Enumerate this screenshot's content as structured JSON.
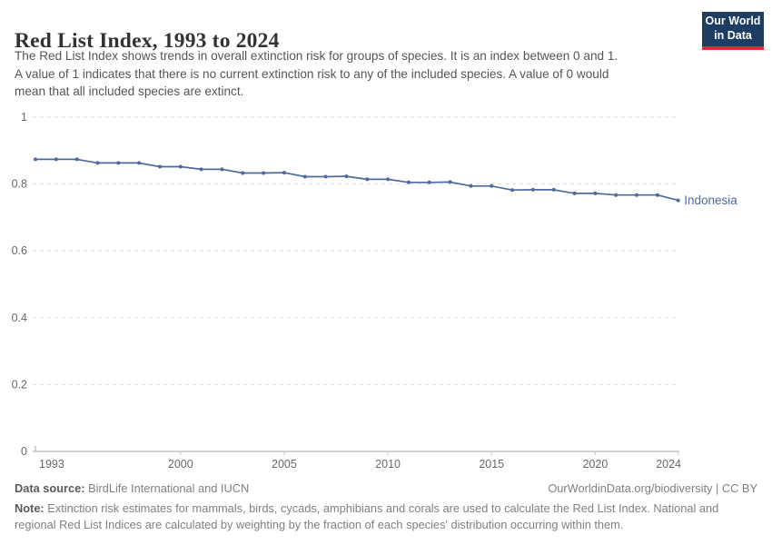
{
  "header": {
    "title": "Red List Index, 1993 to 2024",
    "subtitle_lines": [
      "The Red List Index shows trends in overall extinction risk for groups of species. It is an index between 0 and 1.",
      "A value of 1 indicates that there is no current extinction risk to any of the included species. A value of 0 would",
      "mean that all included species are extinct."
    ],
    "logo": {
      "line1": "Our World",
      "line2": "in Data",
      "bg_color": "#1d3d63",
      "bar_color": "#d13239"
    }
  },
  "chart_data": {
    "type": "line",
    "title": "Red List Index, 1993 to 2024",
    "xlabel": "",
    "ylabel": "",
    "grid": "horizontal-dashed",
    "legend": "inline-end-label",
    "ylim": [
      0,
      1
    ],
    "yticks": [
      0,
      0.2,
      0.4,
      0.6,
      0.8,
      1
    ],
    "ytick_labels": [
      "0",
      "0.2",
      "0.4",
      "0.6",
      "0.8",
      "1"
    ],
    "xticks": [
      1993,
      2000,
      2005,
      2010,
      2015,
      2020,
      2024
    ],
    "x": [
      1993,
      1994,
      1995,
      1996,
      1997,
      1998,
      1999,
      2000,
      2001,
      2002,
      2003,
      2004,
      2005,
      2006,
      2007,
      2008,
      2009,
      2010,
      2011,
      2012,
      2013,
      2014,
      2015,
      2016,
      2017,
      2018,
      2019,
      2020,
      2021,
      2022,
      2023,
      2024
    ],
    "series": [
      {
        "name": "Indonesia",
        "color": "#4C6A9C",
        "values": [
          0.874,
          0.874,
          0.874,
          0.863,
          0.863,
          0.863,
          0.852,
          0.852,
          0.844,
          0.844,
          0.833,
          0.833,
          0.834,
          0.822,
          0.822,
          0.823,
          0.814,
          0.814,
          0.805,
          0.805,
          0.806,
          0.794,
          0.794,
          0.782,
          0.783,
          0.783,
          0.772,
          0.772,
          0.767,
          0.767,
          0.767,
          0.751
        ]
      }
    ],
    "axis_color": "#a6a6a6",
    "gridline_color": "#dbdbdb",
    "tick_color": "#c8c8c8"
  },
  "footer": {
    "datasource_label": "Data source:",
    "datasource_value": " BirdLife International and IUCN",
    "rights": "OurWorldinData.org/biodiversity | CC BY",
    "note_label": "Note:",
    "note_line1": " Extinction risk estimates for mammals, birds, cycads, amphibians and corals are used to calculate the Red List Index. National and",
    "note_line2": "regional Red List Indices are calculated by weighting by the fraction of each species' distribution occurring within them."
  }
}
